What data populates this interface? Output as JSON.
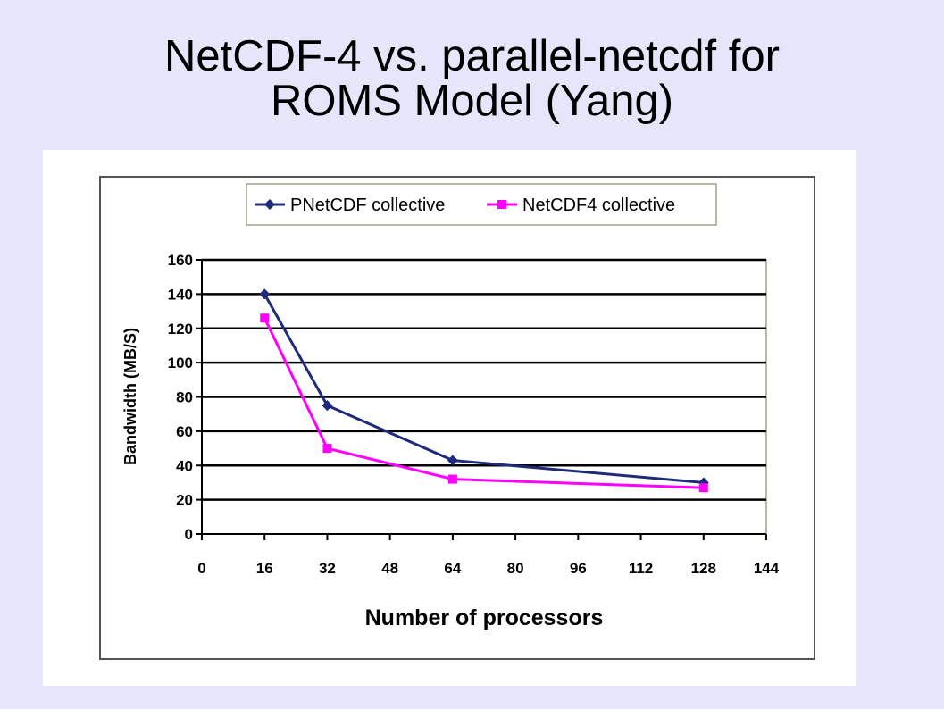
{
  "slide": {
    "title_line1": "NetCDF-4 vs. parallel-netcdf for",
    "title_line2": "ROMS Model (Yang)"
  },
  "chart_data": {
    "type": "line",
    "xlabel": "Number of processors",
    "ylabel": "Bandwidth (MB/S)",
    "xlim": [
      0,
      144
    ],
    "ylim": [
      0,
      160
    ],
    "x_ticks": [
      0,
      16,
      32,
      48,
      64,
      80,
      96,
      112,
      128,
      144
    ],
    "y_ticks": [
      0,
      20,
      40,
      60,
      80,
      100,
      120,
      140,
      160
    ],
    "grid": "horizontal",
    "legend_position": "top",
    "series": [
      {
        "name": "PNetCDF collective",
        "color": "#1f2a7a",
        "marker": "diamond",
        "x": [
          16,
          32,
          64,
          128
        ],
        "y": [
          140,
          75,
          43,
          30
        ]
      },
      {
        "name": "NetCDF4 collective",
        "color": "#ff00ff",
        "marker": "square",
        "x": [
          16,
          32,
          64,
          128
        ],
        "y": [
          126,
          50,
          32,
          27
        ]
      }
    ]
  }
}
